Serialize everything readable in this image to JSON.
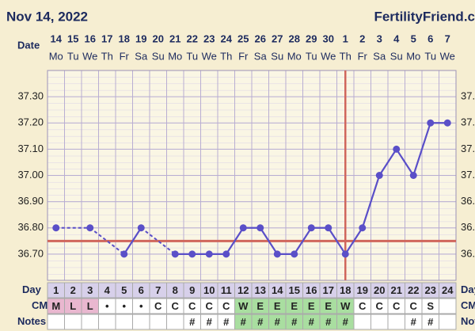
{
  "header": {
    "date": "Nov 14, 2022",
    "site": "FertilityFriend.c"
  },
  "chart_data": {
    "type": "line",
    "date_label": "Date",
    "categories": [
      "14",
      "15",
      "16",
      "17",
      "18",
      "19",
      "20",
      "21",
      "22",
      "23",
      "24",
      "25",
      "26",
      "27",
      "28",
      "29",
      "30",
      "1",
      "2",
      "3",
      "4",
      "5",
      "6",
      "7"
    ],
    "weekdays": [
      "Mo",
      "Tu",
      "We",
      "Th",
      "Fr",
      "Sa",
      "Su",
      "Mo",
      "Tu",
      "We",
      "Th",
      "Fr",
      "Sa",
      "Su",
      "Mo",
      "Tu",
      "We",
      "Th",
      "Fr",
      "Sa",
      "Su",
      "Mo",
      "Tu",
      "We"
    ],
    "values": [
      36.8,
      null,
      36.8,
      null,
      36.7,
      36.8,
      null,
      36.7,
      36.7,
      36.7,
      36.7,
      36.8,
      36.8,
      36.7,
      36.7,
      36.8,
      36.8,
      36.7,
      36.8,
      37.0,
      37.1,
      37.0,
      37.2,
      37.2
    ],
    "color": "#5a4fc8",
    "ylim": [
      36.6,
      37.4
    ],
    "yticks": [
      {
        "value": 36.7,
        "label": "36.70"
      },
      {
        "value": 36.8,
        "label": "36.80"
      },
      {
        "value": 36.9,
        "label": "36.90"
      },
      {
        "value": 37.0,
        "label": "37.00"
      },
      {
        "value": 37.1,
        "label": "37.10"
      },
      {
        "value": 37.2,
        "label": "37.20"
      },
      {
        "value": 37.3,
        "label": "37.30"
      }
    ],
    "grid": true,
    "coverline": 36.75,
    "coverline_color": "#d0665c",
    "ovulation_day": 18,
    "ovulation_color": "#d0665c",
    "rows": {
      "day": {
        "label": "Day",
        "values": [
          1,
          2,
          3,
          4,
          5,
          6,
          7,
          8,
          9,
          10,
          11,
          12,
          13,
          14,
          15,
          16,
          17,
          18,
          19,
          20,
          21,
          22,
          23,
          24
        ]
      },
      "cm": {
        "label": "CM",
        "values": [
          "M",
          "L",
          "L",
          "•",
          "•",
          "•",
          "C",
          "C",
          "C",
          "C",
          "C",
          "W",
          "E",
          "E",
          "E",
          "E",
          "E",
          "W",
          "C",
          "C",
          "C",
          "C",
          "S",
          null
        ]
      },
      "notes": {
        "label": "Notes",
        "values": [
          null,
          null,
          null,
          null,
          null,
          null,
          null,
          null,
          "#",
          "#",
          "#",
          "#",
          "#",
          "#",
          "#",
          "#",
          "#",
          "#",
          null,
          null,
          null,
          "#",
          "#",
          null
        ]
      }
    },
    "cm_colors": {
      "M": "#e9b7cf",
      "L": "#e9b7cf",
      "W": "#a9dea0",
      "E": "#a9dea0"
    }
  }
}
